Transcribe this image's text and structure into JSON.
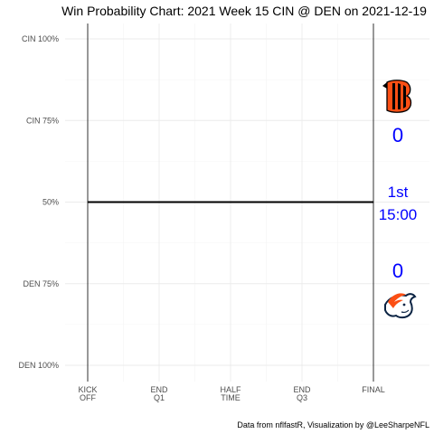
{
  "chart_data": {
    "type": "line",
    "title": "Win Probability Chart: 2021 Week 15 CIN @ DEN on 2021-12-19",
    "xlabel": "",
    "ylabel": "",
    "x_ticks": [
      {
        "value": 0,
        "lines": [
          "KICK",
          "OFF"
        ]
      },
      {
        "value": 15,
        "lines": [
          "END",
          "Q1"
        ]
      },
      {
        "value": 30,
        "lines": [
          "HALF",
          "TIME"
        ]
      },
      {
        "value": 45,
        "lines": [
          "END",
          "Q3"
        ]
      },
      {
        "value": 60,
        "lines": [
          "FINAL"
        ]
      }
    ],
    "xlim": [
      0,
      60
    ],
    "y_ticks": [
      {
        "value": 1.0,
        "label": "CIN 100%"
      },
      {
        "value": 0.75,
        "label": "CIN 75%"
      },
      {
        "value": 0.5,
        "label": "50%"
      },
      {
        "value": 0.25,
        "label": "DEN 75%"
      },
      {
        "value": 0.0,
        "label": "DEN 100%"
      }
    ],
    "ylim": [
      0,
      1
    ],
    "grid": true,
    "series": [
      {
        "x": [
          0,
          60
        ],
        "y": [
          0.5,
          0.5
        ],
        "color": "#000000"
      }
    ],
    "away_score": "0",
    "home_score": "0",
    "quarter": "1st",
    "clock": "15:00",
    "away_logo": "bengals-logo",
    "home_logo": "broncos-logo",
    "caption": "Data from nflfastR, Visualization by @LeeSharpeNFL",
    "score_color": "#0000ff"
  }
}
